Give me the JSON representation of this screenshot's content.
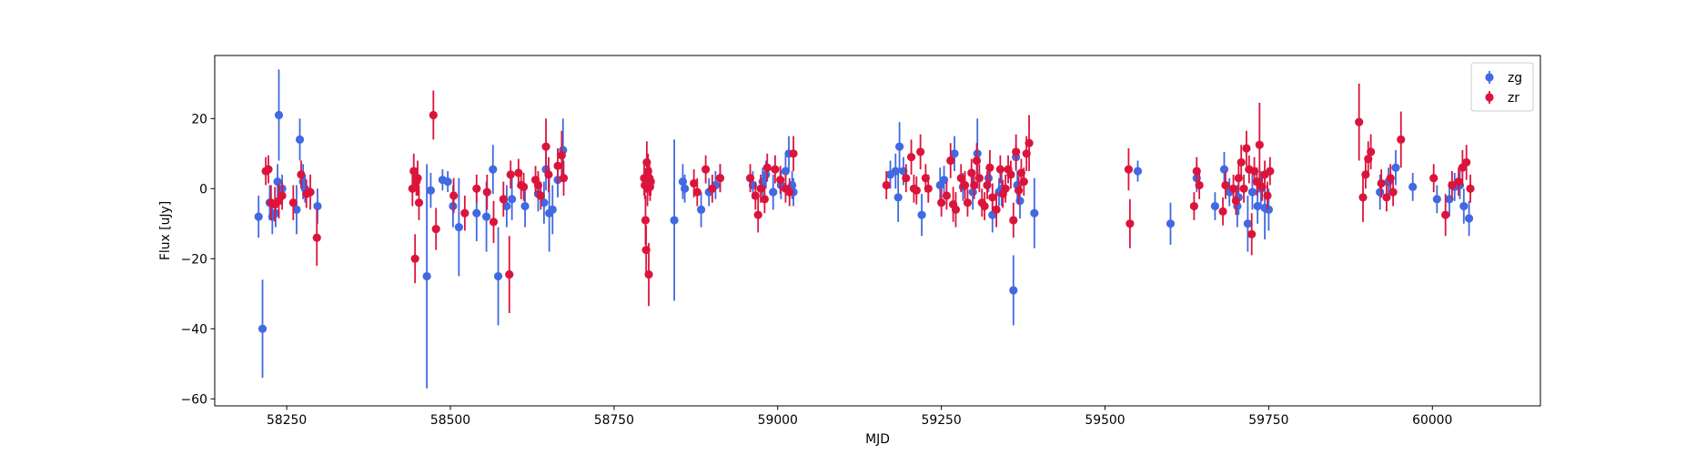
{
  "chart_data": {
    "type": "scatter",
    "title": "",
    "xlabel": "MJD",
    "ylabel": "Flux [uJy]",
    "xlim": [
      58140,
      60165
    ],
    "ylim": [
      -62,
      38
    ],
    "xticks": [
      58250,
      58500,
      58750,
      59000,
      59250,
      59500,
      59750,
      60000
    ],
    "yticks": [
      -60,
      -40,
      -20,
      0,
      20
    ],
    "grid": false,
    "legend_position": "top-right",
    "series": [
      {
        "name": "zg",
        "color": "#4169e1",
        "points": [
          [
            58207,
            -8,
            6
          ],
          [
            58213,
            -40,
            14
          ],
          [
            58224,
            -4,
            5
          ],
          [
            58228,
            -8,
            5
          ],
          [
            58233,
            -7,
            4
          ],
          [
            58236,
            2,
            5
          ],
          [
            58238,
            21,
            13
          ],
          [
            58243,
            0,
            4
          ],
          [
            58265,
            -6,
            7
          ],
          [
            58270,
            14,
            6
          ],
          [
            58275,
            2,
            5
          ],
          [
            58278,
            0,
            4
          ],
          [
            58297,
            -5,
            5
          ],
          [
            58464,
            -25,
            32
          ],
          [
            58470,
            -0.5,
            5
          ],
          [
            58488,
            2.5,
            3
          ],
          [
            58496,
            2,
            3
          ],
          [
            58504,
            -5,
            6
          ],
          [
            58513,
            -11,
            14
          ],
          [
            58540,
            -7,
            8
          ],
          [
            58555,
            -8,
            10
          ],
          [
            58565,
            5.5,
            7
          ],
          [
            58573,
            -25,
            14
          ],
          [
            58586,
            -5,
            6
          ],
          [
            58594,
            -3,
            6
          ],
          [
            58614,
            -5,
            6
          ],
          [
            58634,
            -1.5,
            5
          ],
          [
            58643,
            -4,
            6
          ],
          [
            58646,
            5.5,
            6
          ],
          [
            58651,
            -7,
            11
          ],
          [
            58656,
            -6,
            7
          ],
          [
            58664,
            2.5,
            5
          ],
          [
            58672,
            11,
            9
          ],
          [
            58842,
            -9,
            23
          ],
          [
            58855,
            2,
            5
          ],
          [
            58858,
            0,
            4
          ],
          [
            58883,
            -6,
            5
          ],
          [
            58895,
            -1,
            4
          ],
          [
            58905,
            1,
            4
          ],
          [
            58912,
            3,
            4
          ],
          [
            58962,
            1,
            4
          ],
          [
            58977,
            2,
            4
          ],
          [
            58982,
            4,
            4
          ],
          [
            58993,
            -1,
            5
          ],
          [
            59005,
            1,
            4
          ],
          [
            59012,
            5,
            5
          ],
          [
            59017,
            10,
            5
          ],
          [
            59022,
            1,
            4
          ],
          [
            59024,
            -1,
            4
          ],
          [
            59172,
            4,
            4
          ],
          [
            59180,
            5,
            5
          ],
          [
            59184,
            -2.5,
            7
          ],
          [
            59186,
            12,
            7
          ],
          [
            59192,
            5,
            4
          ],
          [
            59220,
            -7.5,
            6
          ],
          [
            59248,
            1,
            5
          ],
          [
            59254,
            2.5,
            4
          ],
          [
            59270,
            10,
            5
          ],
          [
            59283,
            0.5,
            4
          ],
          [
            59298,
            -1,
            5
          ],
          [
            59305,
            10,
            10
          ],
          [
            59322,
            3,
            4
          ],
          [
            59328,
            -7.5,
            5
          ],
          [
            59338,
            -1,
            4
          ],
          [
            59342,
            0,
            5
          ],
          [
            59360,
            -29,
            10
          ],
          [
            59364,
            9,
            4
          ],
          [
            59366,
            1,
            4
          ],
          [
            59370,
            -3.5,
            5
          ],
          [
            59392,
            -7,
            10
          ],
          [
            59550,
            5,
            3
          ],
          [
            59600,
            -10,
            6
          ],
          [
            59640,
            3,
            4
          ],
          [
            59668,
            -5,
            4
          ],
          [
            59682,
            5.5,
            5
          ],
          [
            59690,
            -1,
            4
          ],
          [
            59702,
            -5,
            6
          ],
          [
            59704,
            -2.5,
            5
          ],
          [
            59718,
            -10,
            8
          ],
          [
            59725,
            -1,
            5
          ],
          [
            59733,
            -5,
            5
          ],
          [
            59738,
            0,
            5
          ],
          [
            59744,
            -5.5,
            9
          ],
          [
            59750,
            -6,
            6
          ],
          [
            59920,
            -1,
            5
          ],
          [
            59933,
            2,
            4
          ],
          [
            59944,
            6,
            5
          ],
          [
            59970,
            0.5,
            4
          ],
          [
            60007,
            -3,
            4
          ],
          [
            60026,
            -3,
            5
          ],
          [
            60034,
            0.5,
            4
          ],
          [
            60042,
            1,
            4
          ],
          [
            60048,
            -5,
            5
          ],
          [
            60056,
            -8.5,
            5
          ]
        ]
      },
      {
        "name": "zr",
        "color": "#dc143c",
        "points": [
          [
            58218,
            5,
            4
          ],
          [
            58222,
            5.5,
            4
          ],
          [
            58226,
            -4,
            5
          ],
          [
            58232,
            -4.5,
            5
          ],
          [
            58238,
            -3.5,
            5
          ],
          [
            58243,
            -2,
            4
          ],
          [
            58260,
            -4,
            5
          ],
          [
            58272,
            4,
            4
          ],
          [
            58280,
            -1.5,
            4
          ],
          [
            58286,
            -1,
            5
          ],
          [
            58296,
            -14,
            8
          ],
          [
            58442,
            0,
            5
          ],
          [
            58444,
            5,
            5
          ],
          [
            58446,
            -20,
            7
          ],
          [
            58448,
            2,
            4
          ],
          [
            58450,
            3,
            5
          ],
          [
            58452,
            -4,
            5
          ],
          [
            58474,
            21,
            7
          ],
          [
            58478,
            -11.5,
            6
          ],
          [
            58505,
            -2,
            5
          ],
          [
            58522,
            -7,
            5
          ],
          [
            58540,
            0,
            4
          ],
          [
            58556,
            -1,
            5
          ],
          [
            58566,
            -9.5,
            6
          ],
          [
            58581,
            -3,
            5
          ],
          [
            58590,
            -24.5,
            11
          ],
          [
            58592,
            4,
            4
          ],
          [
            58604,
            4.5,
            4
          ],
          [
            58608,
            1,
            4
          ],
          [
            58612,
            0.5,
            4
          ],
          [
            58630,
            2.5,
            4
          ],
          [
            58634,
            1,
            4
          ],
          [
            58638,
            -2,
            4
          ],
          [
            58646,
            12,
            8
          ],
          [
            58650,
            4,
            5
          ],
          [
            58664,
            6.5,
            5
          ],
          [
            58670,
            9.5,
            7
          ],
          [
            58673,
            3,
            5
          ],
          [
            58796,
            3,
            5
          ],
          [
            58797,
            1,
            4
          ],
          [
            58798,
            -9,
            7
          ],
          [
            58799,
            -17.5,
            7
          ],
          [
            58800,
            7.5,
            6
          ],
          [
            58801,
            0,
            5
          ],
          [
            58802,
            5,
            5
          ],
          [
            58803,
            -24.5,
            9
          ],
          [
            58804,
            3,
            5
          ],
          [
            58805,
            0.5,
            4
          ],
          [
            58806,
            2,
            4
          ],
          [
            58872,
            1.5,
            4
          ],
          [
            58877,
            -1,
            4
          ],
          [
            58890,
            5.5,
            4
          ],
          [
            58900,
            0,
            4
          ],
          [
            58912,
            3,
            4
          ],
          [
            58958,
            3,
            4
          ],
          [
            58966,
            -2,
            4
          ],
          [
            58970,
            -7.5,
            5
          ],
          [
            58974,
            0,
            4
          ],
          [
            58980,
            -3,
            4
          ],
          [
            58984,
            6,
            4
          ],
          [
            58996,
            5.5,
            4
          ],
          [
            59004,
            2.5,
            4
          ],
          [
            59012,
            0,
            4
          ],
          [
            59018,
            -1,
            4
          ],
          [
            59024,
            10,
            5
          ],
          [
            59166,
            1,
            4
          ],
          [
            59196,
            3,
            4
          ],
          [
            59204,
            9,
            5
          ],
          [
            59208,
            0,
            4
          ],
          [
            59212,
            -0.5,
            4
          ],
          [
            59218,
            10.5,
            5
          ],
          [
            59226,
            3,
            4
          ],
          [
            59230,
            0,
            4
          ],
          [
            59250,
            -4,
            4
          ],
          [
            59258,
            -2,
            4
          ],
          [
            59264,
            8,
            5
          ],
          [
            59268,
            -4.5,
            5
          ],
          [
            59272,
            -6,
            5
          ],
          [
            59280,
            3,
            4
          ],
          [
            59286,
            1,
            4
          ],
          [
            59290,
            -4,
            4
          ],
          [
            59296,
            4.5,
            4
          ],
          [
            59300,
            1,
            4
          ],
          [
            59304,
            8,
            5
          ],
          [
            59308,
            3,
            4
          ],
          [
            59312,
            -4,
            4
          ],
          [
            59316,
            -5,
            4
          ],
          [
            59320,
            1,
            4
          ],
          [
            59324,
            6,
            5
          ],
          [
            59328,
            -2.5,
            4
          ],
          [
            59334,
            -6,
            5
          ],
          [
            59340,
            5.5,
            4
          ],
          [
            59344,
            -1.5,
            4
          ],
          [
            59348,
            0,
            4
          ],
          [
            59352,
            5.5,
            4
          ],
          [
            59356,
            4,
            4
          ],
          [
            59360,
            -9,
            5
          ],
          [
            59364,
            10.5,
            5
          ],
          [
            59368,
            -0.5,
            4
          ],
          [
            59372,
            4.5,
            4
          ],
          [
            59376,
            2,
            4
          ],
          [
            59380,
            10,
            5
          ],
          [
            59384,
            13,
            8
          ],
          [
            59536,
            5.5,
            6
          ],
          [
            59538,
            -10,
            7
          ],
          [
            59636,
            -5,
            4
          ],
          [
            59640,
            5,
            4
          ],
          [
            59644,
            1,
            4
          ],
          [
            59680,
            -6.5,
            4
          ],
          [
            59684,
            1,
            4
          ],
          [
            59696,
            0,
            4
          ],
          [
            59700,
            -3.5,
            4
          ],
          [
            59704,
            3,
            4
          ],
          [
            59708,
            7.5,
            5
          ],
          [
            59712,
            0,
            4
          ],
          [
            59716,
            11.5,
            5
          ],
          [
            59720,
            5.5,
            4
          ],
          [
            59724,
            -13,
            6
          ],
          [
            59728,
            5,
            4
          ],
          [
            59732,
            2,
            4
          ],
          [
            59736,
            12.5,
            12
          ],
          [
            59740,
            0.5,
            4
          ],
          [
            59744,
            4,
            4
          ],
          [
            59748,
            -2,
            4
          ],
          [
            59752,
            5,
            4
          ],
          [
            59888,
            19,
            11
          ],
          [
            59894,
            -2.5,
            7
          ],
          [
            59898,
            4,
            4
          ],
          [
            59902,
            8.5,
            5
          ],
          [
            59906,
            10.5,
            5
          ],
          [
            59922,
            1.5,
            4
          ],
          [
            59930,
            -2.5,
            4
          ],
          [
            59936,
            3,
            4
          ],
          [
            59940,
            -1,
            4
          ],
          [
            59952,
            14,
            8
          ],
          [
            60002,
            3,
            4
          ],
          [
            60020,
            -7.5,
            6
          ],
          [
            60030,
            1,
            4
          ],
          [
            60040,
            2,
            4
          ],
          [
            60046,
            6,
            5
          ],
          [
            60052,
            7.5,
            5
          ],
          [
            60058,
            0,
            4
          ]
        ]
      }
    ]
  }
}
